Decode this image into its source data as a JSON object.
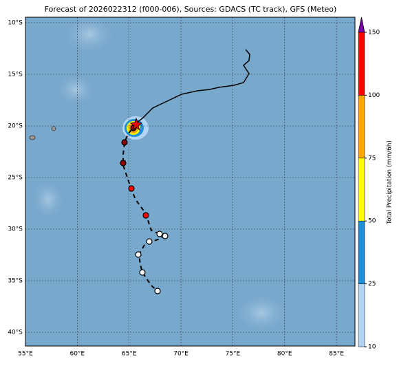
{
  "title": "Forecast of 2026022312 (f000-006), Sources: GDACS (TC track), GFS (Meteo)",
  "lat_labels": [
    "10°S",
    "15°S",
    "20°S",
    "25°S",
    "30°S",
    "35°S",
    "40°S"
  ],
  "lon_labels": [
    "55°E",
    "60°E",
    "65°E",
    "70°E",
    "75°E",
    "80°E",
    "85°E"
  ],
  "colorbar": {
    "label": "Total Precipitation (mm/6h)",
    "ticks": [
      10,
      25,
      50,
      75,
      100,
      150
    ]
  }
}
